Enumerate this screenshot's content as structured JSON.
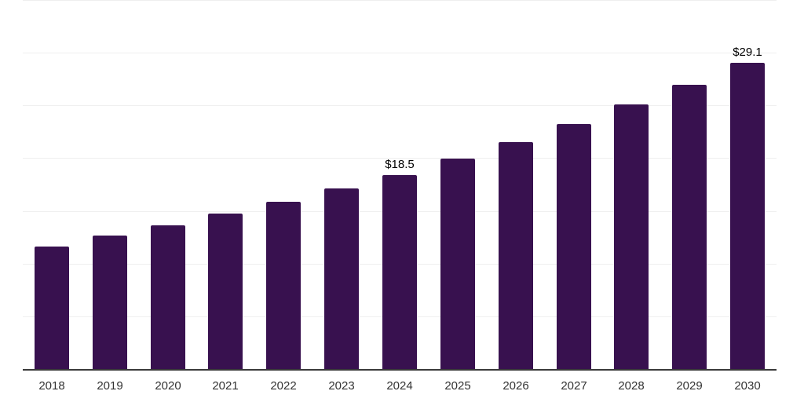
{
  "chart_data": {
    "type": "bar",
    "title": "",
    "xlabel": "",
    "ylabel": "",
    "categories": [
      "2018",
      "2019",
      "2020",
      "2021",
      "2022",
      "2023",
      "2024",
      "2025",
      "2026",
      "2027",
      "2028",
      "2029",
      "2030"
    ],
    "values": [
      11.7,
      12.7,
      13.7,
      14.8,
      15.9,
      17.2,
      18.5,
      20.0,
      21.6,
      23.3,
      25.2,
      27.0,
      29.1
    ],
    "value_labels": [
      "",
      "",
      "",
      "",
      "",
      "",
      "$18.5",
      "",
      "",
      "",
      "",
      "",
      "$29.1"
    ],
    "ylim": [
      0,
      35
    ],
    "grid": true,
    "gridline_values": [
      5,
      10,
      15,
      20,
      25,
      30,
      35
    ],
    "legend": false,
    "colors": {
      "bar": "#38114F",
      "axis_line": "#3A3A3A",
      "gridline": "#EFEFEF",
      "tick_label": "#333333",
      "value_label": "#000000",
      "background": "#FFFFFF"
    }
  }
}
